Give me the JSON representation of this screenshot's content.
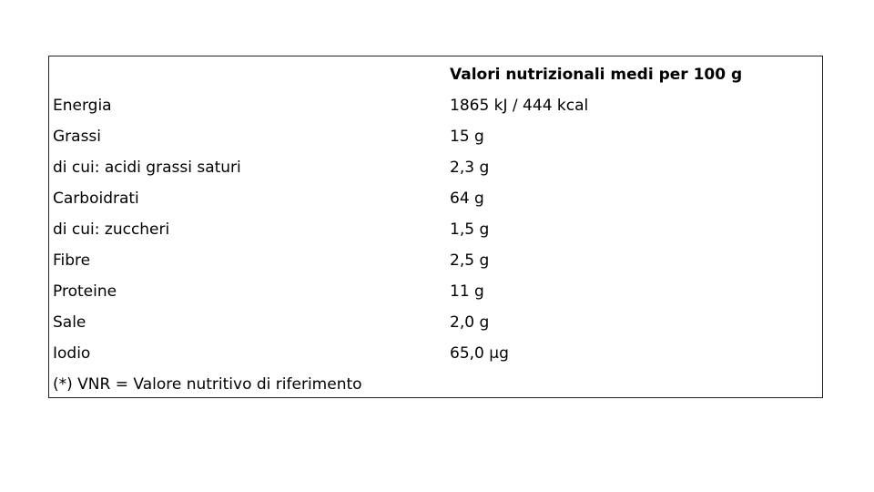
{
  "table": {
    "header": "Valori nutrizionali medi per 100 g",
    "rows": [
      {
        "label": "Energia",
        "value": "1865 kJ / 444 kcal"
      },
      {
        "label": "Grassi",
        "value": "15 g"
      },
      {
        "label": "di cui: acidi grassi saturi",
        "value": "2,3 g"
      },
      {
        "label": "Carboidrati",
        "value": "64 g"
      },
      {
        "label": "di cui: zuccheri",
        "value": "1,5 g"
      },
      {
        "label": "Fibre",
        "value": "2,5 g"
      },
      {
        "label": "Proteine",
        "value": "11 g"
      },
      {
        "label": "Sale",
        "value": "2,0 g"
      },
      {
        "label": "Iodio",
        "value": "65,0 µg"
      }
    ],
    "footnote": "(*) VNR = Valore nutritivo di riferimento"
  }
}
